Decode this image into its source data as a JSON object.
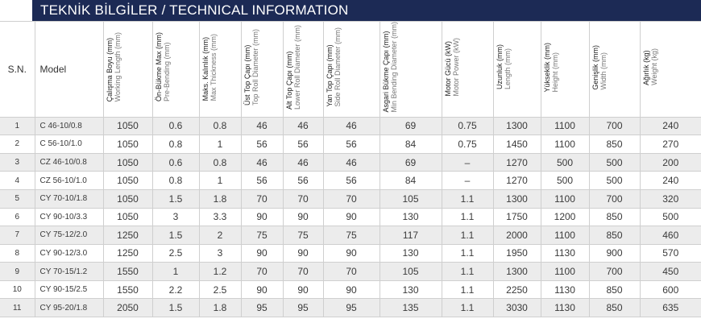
{
  "title": "TEKNİK BİLGİLER / TECHNICAL INFORMATION",
  "header": {
    "sn": "S.N.",
    "model": "Model",
    "columns": [
      {
        "tr": "Çalışma Boyu (mm)",
        "en": "Working Length (mm)"
      },
      {
        "tr": "Ön-Bükme Max (mm)",
        "en": "Pre-Bending (mm)"
      },
      {
        "tr": "Maks. Kalınlık (mm)",
        "en": "Max Thickness (mm)"
      },
      {
        "tr": "Üst Top Çapı (mm)",
        "en": "Top Roll Diameter (mm)"
      },
      {
        "tr": "Alt Top Çapı (mm)",
        "en": "Lower Roll Diameter (mm)"
      },
      {
        "tr": "Yan Top Çapı (mm)",
        "en": "Side Roll Diameter (mm)"
      },
      {
        "tr": "Asgari Bükme Çapı (mm)",
        "en": "Min Bending Diameter (mm)"
      },
      {
        "tr": "Motor Gücü (kW)",
        "en": "Motor Power (kW)"
      },
      {
        "tr": "Uzunluk (mm)",
        "en": "Length (mm)"
      },
      {
        "tr": "Yükseklik (mm)",
        "en": "Height (mm)"
      },
      {
        "tr": "Genişlik (mm)",
        "en": "Width (mm)"
      },
      {
        "tr": "Ağırlık (kg)",
        "en": "Weight (kg)"
      }
    ]
  },
  "rows": [
    [
      "1",
      "C 46-10/0.8",
      "1050",
      "0.6",
      "0.8",
      "46",
      "46",
      "46",
      "69",
      "0.75",
      "1300",
      "1100",
      "700",
      "240"
    ],
    [
      "2",
      "C 56-10/1.0",
      "1050",
      "0.8",
      "1",
      "56",
      "56",
      "56",
      "84",
      "0.75",
      "1450",
      "1100",
      "850",
      "270"
    ],
    [
      "3",
      "CZ 46-10/0.8",
      "1050",
      "0.6",
      "0.8",
      "46",
      "46",
      "46",
      "69",
      "–",
      "1270",
      "500",
      "500",
      "200"
    ],
    [
      "4",
      "CZ 56-10/1.0",
      "1050",
      "0.8",
      "1",
      "56",
      "56",
      "56",
      "84",
      "–",
      "1270",
      "500",
      "500",
      "240"
    ],
    [
      "5",
      "CY 70-10/1.8",
      "1050",
      "1.5",
      "1.8",
      "70",
      "70",
      "70",
      "105",
      "1.1",
      "1300",
      "1100",
      "700",
      "320"
    ],
    [
      "6",
      "CY 90-10/3.3",
      "1050",
      "3",
      "3.3",
      "90",
      "90",
      "90",
      "130",
      "1.1",
      "1750",
      "1200",
      "850",
      "500"
    ],
    [
      "7",
      "CY 75-12/2.0",
      "1250",
      "1.5",
      "2",
      "75",
      "75",
      "75",
      "117",
      "1.1",
      "2000",
      "1100",
      "850",
      "460"
    ],
    [
      "8",
      "CY 90-12/3.0",
      "1250",
      "2.5",
      "3",
      "90",
      "90",
      "90",
      "130",
      "1.1",
      "1950",
      "1130",
      "900",
      "570"
    ],
    [
      "9",
      "CY 70-15/1.2",
      "1550",
      "1",
      "1.2",
      "70",
      "70",
      "70",
      "105",
      "1.1",
      "1300",
      "1100",
      "700",
      "450"
    ],
    [
      "10",
      "CY 90-15/2.5",
      "1550",
      "2.2",
      "2.5",
      "90",
      "90",
      "90",
      "130",
      "1.1",
      "2250",
      "1130",
      "850",
      "600"
    ],
    [
      "11",
      "CY 95-20/1.8",
      "2050",
      "1.5",
      "1.8",
      "95",
      "95",
      "95",
      "135",
      "1.1",
      "3030",
      "1130",
      "850",
      "635"
    ]
  ]
}
